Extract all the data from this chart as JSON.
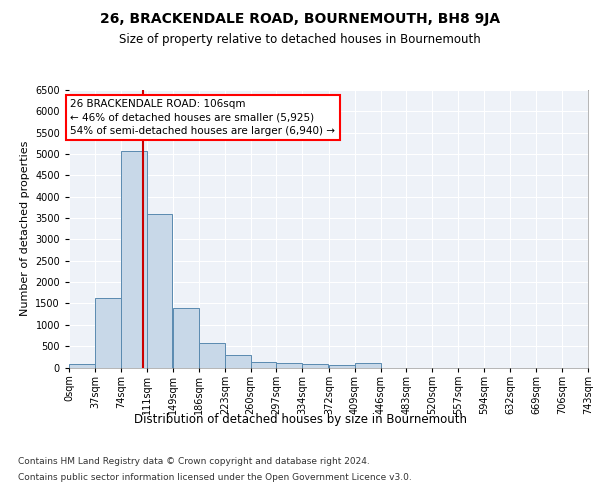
{
  "title": "26, BRACKENDALE ROAD, BOURNEMOUTH, BH8 9JA",
  "subtitle": "Size of property relative to detached houses in Bournemouth",
  "xlabel": "Distribution of detached houses by size in Bournemouth",
  "ylabel": "Number of detached properties",
  "bar_color": "#c8d8e8",
  "bar_edge_color": "#5a8ab0",
  "bg_color": "#eef2f8",
  "grid_color": "#ffffff",
  "annotation_line1": "26 BRACKENDALE ROAD: 106sqm",
  "annotation_line2": "← 46% of detached houses are smaller (5,925)",
  "annotation_line3": "54% of semi-detached houses are larger (6,940) →",
  "vline_x": 106,
  "vline_color": "#cc0000",
  "bin_edges": [
    0,
    37,
    74,
    111,
    149,
    186,
    223,
    260,
    297,
    334,
    372,
    409,
    446,
    483,
    520,
    557,
    594,
    632,
    669,
    706,
    743
  ],
  "bar_heights": [
    75,
    1625,
    5075,
    3600,
    1400,
    575,
    290,
    140,
    100,
    75,
    65,
    100,
    0,
    0,
    0,
    0,
    0,
    0,
    0,
    0
  ],
  "tick_labels": [
    "0sqm",
    "37sqm",
    "74sqm",
    "111sqm",
    "149sqm",
    "186sqm",
    "223sqm",
    "260sqm",
    "297sqm",
    "334sqm",
    "372sqm",
    "409sqm",
    "446sqm",
    "483sqm",
    "520sqm",
    "557sqm",
    "594sqm",
    "632sqm",
    "669sqm",
    "706sqm",
    "743sqm"
  ],
  "ylim": [
    0,
    6500
  ],
  "yticks": [
    0,
    500,
    1000,
    1500,
    2000,
    2500,
    3000,
    3500,
    4000,
    4500,
    5000,
    5500,
    6000,
    6500
  ],
  "footer_line1": "Contains HM Land Registry data © Crown copyright and database right 2024.",
  "footer_line2": "Contains public sector information licensed under the Open Government Licence v3.0.",
  "title_fontsize": 10,
  "subtitle_fontsize": 8.5,
  "ylabel_fontsize": 8,
  "tick_fontsize": 7,
  "annotation_fontsize": 7.5,
  "footer_fontsize": 6.5
}
